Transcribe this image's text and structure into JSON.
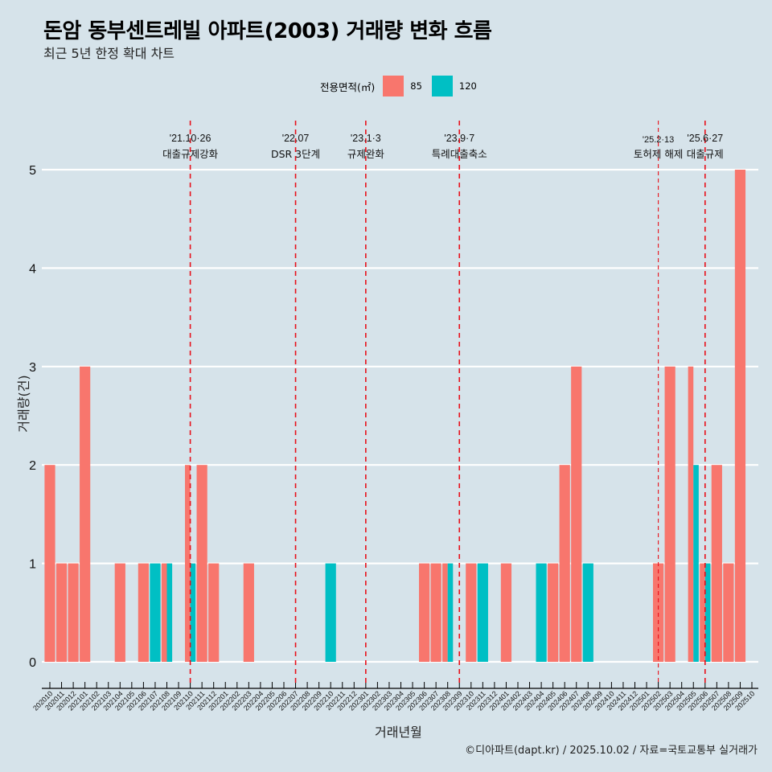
{
  "header": {
    "title": "돈암 동부센트레빌 아파트(2003) 거래량 변화 흐름",
    "subtitle": "최근 5년 한정 확대 차트"
  },
  "legend": {
    "title": "전용면적(㎡)",
    "items": [
      {
        "label": "85",
        "color": "#f8766d"
      },
      {
        "label": "120",
        "color": "#00bfc4"
      }
    ]
  },
  "caption": "©디아파트(dapt.kr) / 2025.10.02 / 자료=국토교통부 실거래가",
  "chart_data": {
    "type": "bar",
    "title": "돈암 동부센트레빌 아파트(2003) 거래량 변화 흐름",
    "subtitle": "최근 5년 한정 확대 차트",
    "xlabel": "거래년월",
    "ylabel": "거래량(건)",
    "ylim": [
      0,
      5
    ],
    "yticks": [
      0,
      1,
      2,
      3,
      4,
      5
    ],
    "grid": true,
    "legend_position": "top",
    "categories": [
      "202010",
      "202011",
      "202012",
      "202101",
      "202102",
      "202103",
      "202104",
      "202105",
      "202106",
      "202107",
      "202108",
      "202109",
      "202110",
      "202111",
      "202112",
      "202201",
      "202202",
      "202203",
      "202204",
      "202205",
      "202206",
      "202207",
      "202208",
      "202209",
      "202210",
      "202211",
      "202212",
      "202301",
      "202302",
      "202303",
      "202304",
      "202305",
      "202306",
      "202307",
      "202308",
      "202309",
      "202310",
      "202311",
      "202312",
      "202401",
      "202402",
      "202403",
      "202404",
      "202405",
      "202406",
      "202407",
      "202408",
      "202409",
      "202410",
      "202411",
      "202412",
      "202501",
      "202502",
      "202503",
      "202504",
      "202505",
      "202506",
      "202507",
      "202508",
      "202509",
      "202510"
    ],
    "series": [
      {
        "name": "85",
        "color": "#f8766d",
        "values": [
          2,
          1,
          1,
          3,
          0,
          0,
          1,
          0,
          1,
          0,
          1,
          0,
          2,
          2,
          1,
          0,
          0,
          1,
          0,
          0,
          0,
          0,
          0,
          0,
          0,
          0,
          0,
          0,
          0,
          0,
          0,
          0,
          1,
          1,
          1,
          0,
          1,
          0,
          0,
          1,
          0,
          0,
          0,
          1,
          2,
          3,
          0,
          0,
          0,
          0,
          0,
          0,
          1,
          3,
          0,
          3,
          1,
          2,
          1,
          5,
          0
        ]
      },
      {
        "name": "120",
        "color": "#00bfc4",
        "values": [
          0,
          0,
          0,
          0,
          0,
          0,
          0,
          0,
          0,
          1,
          1,
          0,
          1,
          0,
          0,
          0,
          0,
          0,
          0,
          0,
          0,
          0,
          0,
          0,
          1,
          0,
          0,
          0,
          0,
          0,
          0,
          0,
          0,
          0,
          1,
          0,
          0,
          1,
          0,
          0,
          0,
          0,
          1,
          0,
          0,
          0,
          1,
          0,
          0,
          0,
          0,
          0,
          0,
          0,
          0,
          2,
          1,
          0,
          0,
          0,
          0
        ]
      }
    ],
    "annotations": [
      {
        "at": "202110",
        "date": "'21.10·26",
        "label": "대출규제강화",
        "style": "normal"
      },
      {
        "at": "202207",
        "date": "'22.07",
        "label": "DSR 3단계",
        "style": "normal"
      },
      {
        "at": "202301",
        "date": "'23.1·3",
        "label": "규제완화",
        "style": "normal"
      },
      {
        "at": "202309",
        "date": "'23.9·7",
        "label": "특례대출축소",
        "style": "normal"
      },
      {
        "at": "202502",
        "date": "'25.2·13",
        "label": "토허제 해제",
        "style": "thin"
      },
      {
        "at": "202506",
        "date": "'25.6·27",
        "label": "대출규제",
        "style": "normal"
      }
    ],
    "reference_line_color": "#e8101a"
  }
}
